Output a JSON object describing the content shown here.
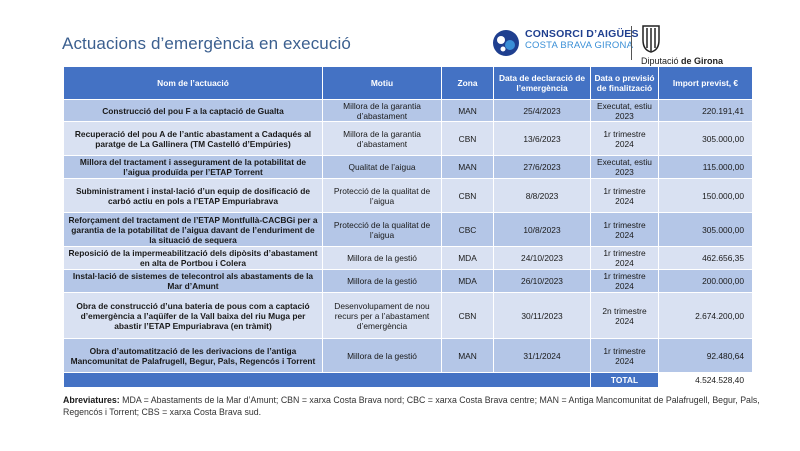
{
  "page": {
    "title": "Actuacions d’emergència en execució"
  },
  "logos": {
    "consorci_line1": "CONSORCI D’AIGÜES",
    "consorci_line2": "COSTA BRAVA GIRONA",
    "diputacio_prefix": "Diputació ",
    "diputacio_bold": "de Girona"
  },
  "colors": {
    "header": "#4472c4",
    "row_dark": "#b4c6e7",
    "row_light": "#d9e1f2",
    "title": "#3b5f8f"
  },
  "table": {
    "headers": [
      "Nom de l’actuació",
      "Motiu",
      "Zona",
      "Data de declaració de l’emergència",
      "Data o previsió de finalització",
      "Import previst, €"
    ],
    "rows": [
      {
        "name": "Construcció del pou F a la captació de Gualta",
        "motiu": "Millora de la garantia d’abastament",
        "zona": "MAN",
        "data": "25/4/2023",
        "fi": "Executat, estiu 2023",
        "import": "220.191,41"
      },
      {
        "name": "Recuperació del pou A de l’antic abastament a Cadaqués al paratge de La Gallinera (TM Castelló d’Empúries)",
        "motiu": "Millora de la garantia d’abastament",
        "zona": "CBN",
        "data": "13/6/2023",
        "fi": "1r trimestre 2024",
        "import": "305.000,00"
      },
      {
        "name": "Millora del tractament i assegurament de la potabilitat de l’aigua produïda per l’ETAP Torrent",
        "motiu": "Qualitat de l’aigua",
        "zona": "MAN",
        "data": "27/6/2023",
        "fi": "Executat, estiu 2023",
        "import": "115.000,00"
      },
      {
        "name": "Subministrament i instal·lació d’un equip de dosificació de carbó actiu en pols a l’ETAP Empuriabrava",
        "motiu": "Protecció de la qualitat de l’aigua",
        "zona": "CBN",
        "data": "8/8/2023",
        "fi": "1r trimestre 2024",
        "import": "150.000,00"
      },
      {
        "name": "Reforçament del tractament de l’ETAP Montfullà-CACBGi per a garantia de la potabilitat de l’aigua davant de l’enduriment de la situació de sequera",
        "motiu": "Protecció de la qualitat de l’aigua",
        "zona": "CBC",
        "data": "10/8/2023",
        "fi": "1r trimestre 2024",
        "import": "305.000,00"
      },
      {
        "name": "Reposició de la impermeabilització dels dipòsits d’abastament en alta de Portbou i Colera",
        "motiu": "Millora de la gestió",
        "zona": "MDA",
        "data": "24/10/2023",
        "fi": "1r trimestre 2024",
        "import": "462.656,35"
      },
      {
        "name": "Instal·lació de sistemes de telecontrol als abastaments de la Mar d’Amunt",
        "motiu": "Millora de la gestió",
        "zona": "MDA",
        "data": "26/10/2023",
        "fi": "1r trimestre 2024",
        "import": "200.000,00"
      },
      {
        "name": "Obra de construcció d’una bateria de pous com a captació d’emergència a l’aqüífer de la Vall baixa del riu Muga per abastir l’ETAP Empuriabrava (en tràmit)",
        "motiu": "Desenvolupament de nou recurs per a l’abastament d’emergència",
        "zona": "CBN",
        "data": "30/11/2023",
        "fi": "2n trimestre 2024",
        "import": "2.674.200,00"
      },
      {
        "name": "Obra d’automatització de les derivacions de l’antiga Mancomunitat de Palafrugell, Begur, Pals, Regencós i Torrent",
        "motiu": "Millora de la gestió",
        "zona": "MAN",
        "data": "31/1/2024",
        "fi": "1r trimestre 2024",
        "import": "92.480,64"
      }
    ],
    "total_label": "TOTAL",
    "total_value": "4.524.528,40"
  },
  "footnote": {
    "label": "Abreviatures:",
    "text": " MDA = Abastaments de la Mar d’Amunt; CBN = xarxa Costa Brava nord; CBC = xarxa Costa Brava centre; MAN = Antiga Mancomunitat de Palafrugell, Begur, Pals, Regencós i Torrent; CBS = xarxa Costa Brava sud."
  }
}
